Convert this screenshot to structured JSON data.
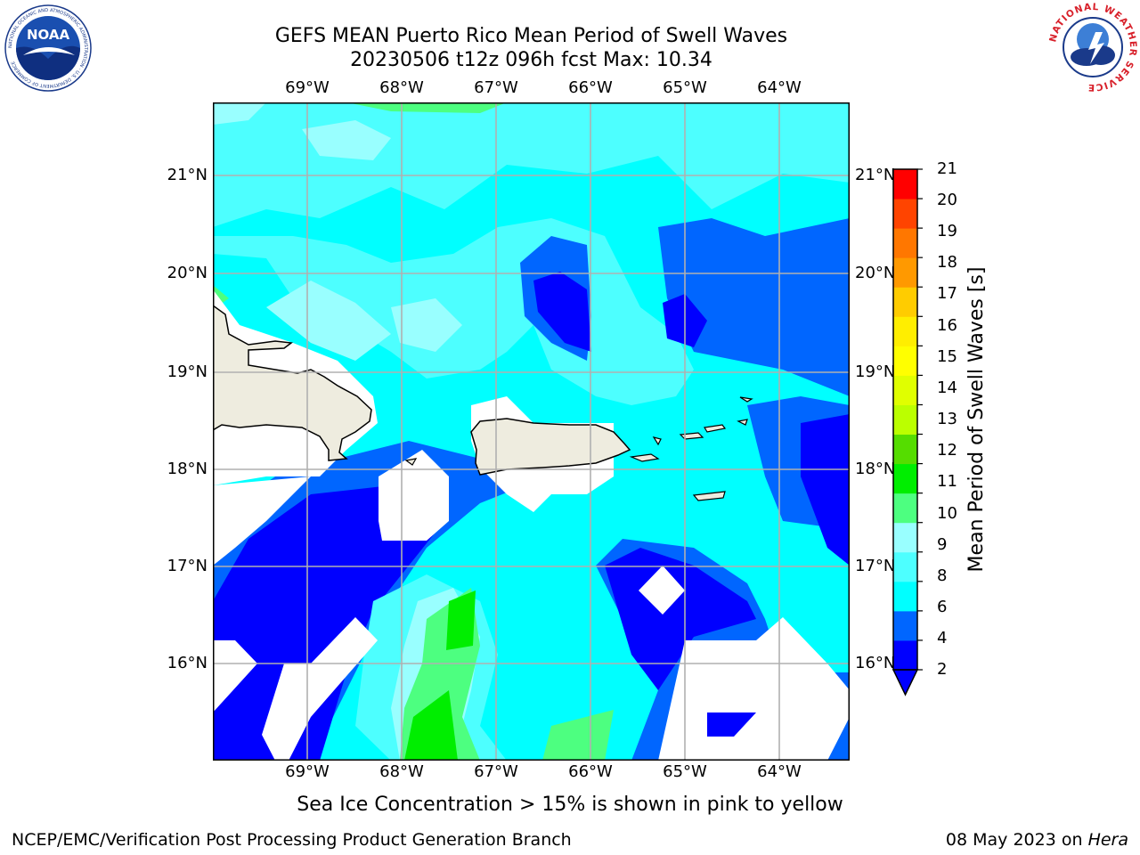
{
  "header": {
    "title_line1": "GEFS MEAN Puerto Rico Mean Period of Swell Waves",
    "title_line2": "20230506 t12z 096h fcst   Max: 10.34"
  },
  "logos": {
    "left": {
      "name": "noaa-logo",
      "text": "NOAA",
      "ring_text": "NATIONAL OCEANIC AND ATMOSPHERIC ADMINISTRATION · U.S. DEPARTMENT OF COMMERCE"
    },
    "right": {
      "name": "nws-logo",
      "ring_text": "NATIONAL WEATHER SERVICE"
    }
  },
  "map": {
    "lon_ticks": [
      "69°W",
      "68°W",
      "67°W",
      "66°W",
      "65°W",
      "64°W"
    ],
    "lat_ticks": [
      "21°N",
      "20°N",
      "19°N",
      "18°N",
      "17°N",
      "16°N"
    ]
  },
  "colorbar": {
    "label": "Mean Period of Swell Waves [s]",
    "ticks": [
      "21",
      "20",
      "19",
      "18",
      "17",
      "16",
      "15",
      "14",
      "13",
      "12",
      "11",
      "10",
      "9",
      "8",
      "6",
      "4",
      "2"
    ],
    "colors": [
      "#0000ff",
      "#0066ff",
      "#00ffff",
      "#4dffff",
      "#99ffff",
      "#4dff80",
      "#00ee00",
      "#55dd00",
      "#bbff00",
      "#e0ff00",
      "#ffff00",
      "#ffee00",
      "#ffcc00",
      "#ff9900",
      "#ff7700",
      "#ff4400",
      "#ff0000"
    ],
    "extend_color": "#0000ff"
  },
  "caption": "Sea Ice Concentration > 15% is shown in pink to yellow",
  "footer": {
    "left": "NCEP/EMC/Verification Post Processing Product Generation Branch",
    "right_date": "08 May 2023 on ",
    "right_host": "Hera"
  },
  "style": {
    "land_color": "#eeecdf",
    "grid_color": "#b0b0b0",
    "noaa_blue": "#1a4fb0",
    "nws_red": "#d8202a"
  }
}
